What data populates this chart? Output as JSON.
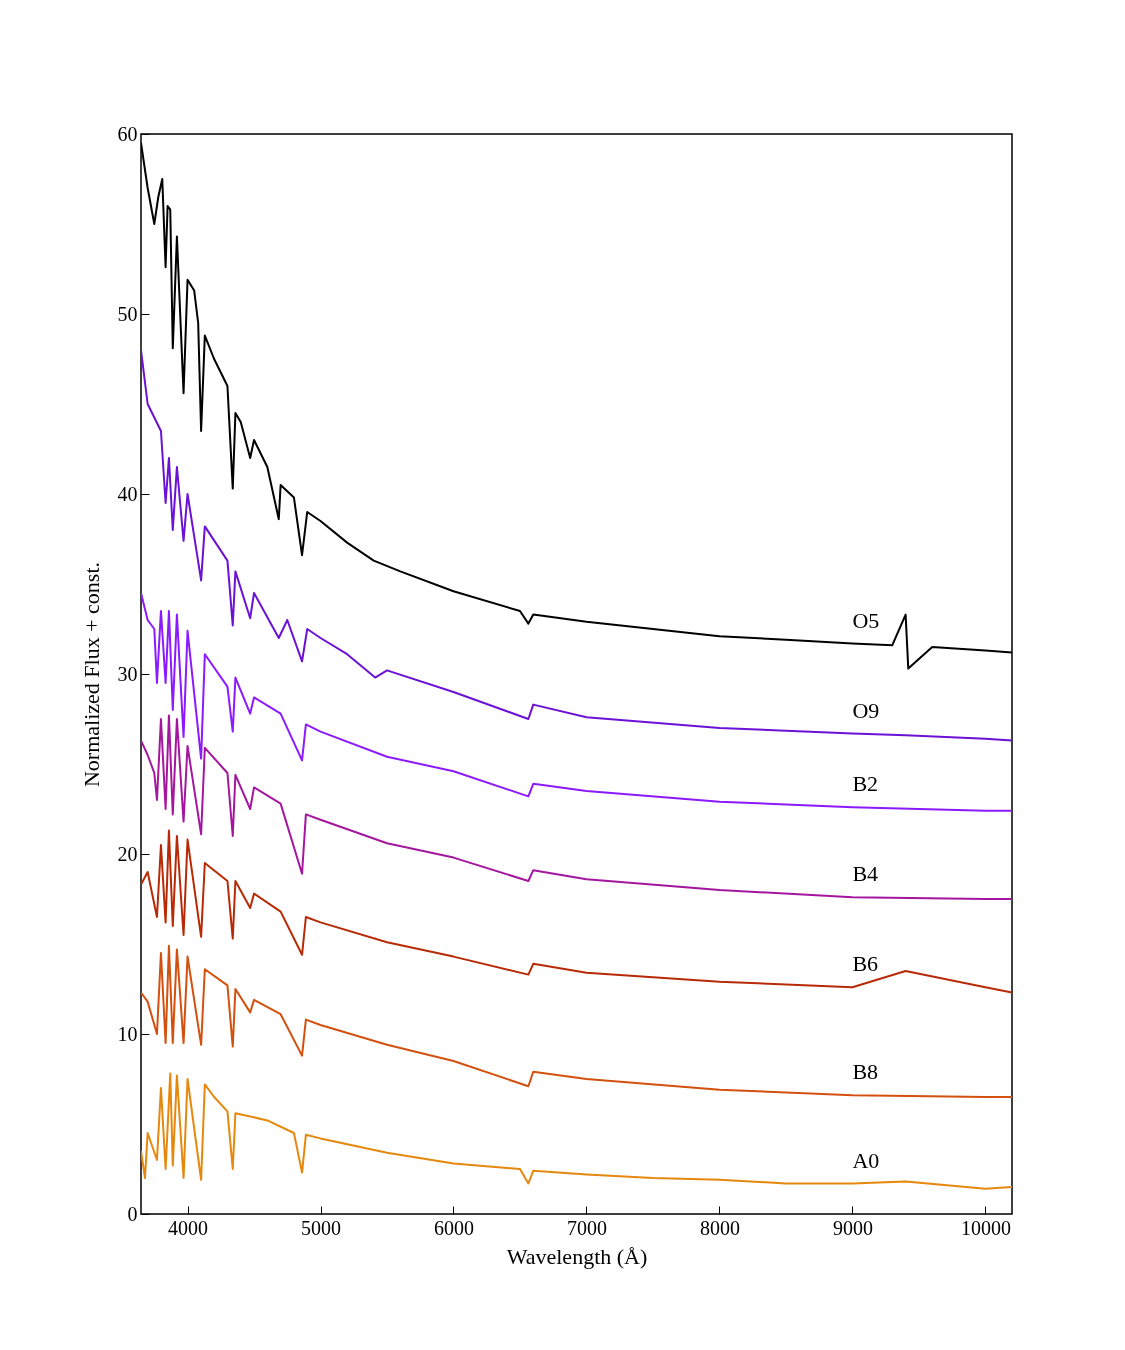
{
  "chart_data": {
    "type": "line",
    "xlabel": "Wavelength (Å)",
    "ylabel": "Normalized Flux + const.",
    "xlim": [
      3650,
      10200
    ],
    "ylim": [
      0,
      60
    ],
    "xticks": [
      4000,
      5000,
      6000,
      7000,
      8000,
      9000,
      10000
    ],
    "yticks": [
      0,
      10,
      20,
      30,
      40,
      50,
      60
    ],
    "grid": false,
    "legend": false,
    "marker": "none",
    "line_style": "solid",
    "series": [
      {
        "name": "O5",
        "color": "#000000",
        "x": [
          3650,
          3700,
          3750,
          3780,
          3810,
          3835,
          3850,
          3870,
          3889,
          3920,
          3970,
          4000,
          4050,
          4080,
          4102,
          4130,
          4200,
          4300,
          4340,
          4360,
          4400,
          4471,
          4500,
          4600,
          4686,
          4700,
          4800,
          4861,
          4900,
          5000,
          5200,
          5400,
          5600,
          6000,
          6500,
          6563,
          6600,
          7000,
          7500,
          8000,
          8500,
          9000,
          9300,
          9400,
          9420,
          9600,
          9800,
          10000,
          10200
        ],
        "values": [
          59.5,
          57,
          55,
          56.5,
          57.5,
          52.6,
          56,
          55.8,
          48.1,
          54.3,
          45.6,
          51.9,
          51.3,
          49.5,
          43.5,
          48.8,
          47.5,
          46,
          40.3,
          44.5,
          44,
          42,
          43,
          41.5,
          38.6,
          40.5,
          39.8,
          36.6,
          39,
          38.5,
          37.3,
          36.3,
          35.7,
          34.6,
          33.5,
          32.8,
          33.3,
          32.9,
          32.5,
          32.1,
          31.9,
          31.7,
          31.6,
          33.3,
          30.3,
          31.5,
          31.4,
          31.3,
          31.2
        ]
      },
      {
        "name": "O9",
        "color": "#6b12d6",
        "x": [
          3650,
          3700,
          3800,
          3835,
          3860,
          3889,
          3920,
          3970,
          4000,
          4102,
          4130,
          4300,
          4340,
          4360,
          4471,
          4500,
          4686,
          4750,
          4861,
          4900,
          5000,
          5200,
          5411,
          5500,
          6000,
          6563,
          6600,
          7000,
          8000,
          9000,
          9400,
          10000,
          10200
        ],
        "values": [
          48,
          45,
          43.5,
          39.5,
          42,
          38,
          41.5,
          37.4,
          40,
          35.2,
          38.2,
          36.3,
          32.7,
          35.7,
          33.1,
          34.5,
          32,
          33,
          30.7,
          32.5,
          32,
          31.1,
          29.8,
          30.2,
          29,
          27.5,
          28.3,
          27.6,
          27,
          26.7,
          26.6,
          26.4,
          26.3
        ]
      },
      {
        "name": "B2",
        "color": "#8c1aff",
        "x": [
          3650,
          3700,
          3750,
          3770,
          3800,
          3835,
          3860,
          3889,
          3920,
          3970,
          4000,
          4102,
          4130,
          4300,
          4340,
          4360,
          4471,
          4500,
          4700,
          4861,
          4890,
          5000,
          5500,
          6000,
          6563,
          6600,
          7000,
          8000,
          9000,
          10000,
          10200
        ],
        "values": [
          34.5,
          33,
          32.5,
          29.5,
          33.5,
          29.5,
          33.5,
          28,
          33.3,
          26.5,
          32.4,
          25.3,
          31.1,
          29.3,
          26.8,
          29.8,
          27.8,
          28.7,
          27.8,
          25.2,
          27.2,
          26.8,
          25.4,
          24.6,
          23.2,
          23.9,
          23.5,
          22.9,
          22.6,
          22.4,
          22.4
        ]
      },
      {
        "name": "B4",
        "color": "#a5169f",
        "x": [
          3650,
          3700,
          3750,
          3770,
          3800,
          3835,
          3860,
          3889,
          3920,
          3970,
          4000,
          4102,
          4130,
          4300,
          4340,
          4360,
          4471,
          4500,
          4700,
          4861,
          4890,
          5000,
          5500,
          6000,
          6563,
          6600,
          7000,
          8000,
          9000,
          10000,
          10200
        ],
        "values": [
          26.3,
          25.5,
          24.5,
          23,
          27.5,
          22.5,
          27.7,
          22.2,
          27.5,
          21.8,
          26,
          21.1,
          25.9,
          24.5,
          21,
          24.4,
          22.5,
          23.7,
          22.8,
          18.9,
          22.2,
          21.9,
          20.6,
          19.8,
          18.5,
          19.1,
          18.6,
          18,
          17.6,
          17.5,
          17.5
        ]
      },
      {
        "name": "B6",
        "color": "#b82a05",
        "x": [
          3650,
          3700,
          3770,
          3800,
          3835,
          3860,
          3889,
          3920,
          3970,
          4000,
          4102,
          4130,
          4300,
          4340,
          4360,
          4471,
          4500,
          4700,
          4861,
          4890,
          5000,
          5500,
          6000,
          6563,
          6600,
          7000,
          8000,
          9000,
          9400,
          10000,
          10200
        ],
        "values": [
          18.3,
          19,
          16.5,
          20.5,
          16.2,
          21.3,
          16,
          21,
          15.5,
          20.8,
          15.4,
          19.5,
          18.5,
          15.3,
          18.5,
          17,
          17.8,
          16.8,
          14.4,
          16.5,
          16.2,
          15.1,
          14.3,
          13.3,
          13.9,
          13.4,
          12.9,
          12.6,
          13.5,
          12.6,
          12.3
        ]
      },
      {
        "name": "B8",
        "color": "#d4500e",
        "x": [
          3650,
          3700,
          3770,
          3800,
          3835,
          3860,
          3889,
          3920,
          3970,
          4000,
          4102,
          4130,
          4300,
          4340,
          4360,
          4471,
          4500,
          4700,
          4861,
          4890,
          5000,
          5500,
          6000,
          6563,
          6600,
          7000,
          8000,
          9000,
          10000,
          10200
        ],
        "values": [
          12.3,
          11.8,
          10,
          14.5,
          9.5,
          14.9,
          9.5,
          14.7,
          9.5,
          14.3,
          9.4,
          13.6,
          12.7,
          9.3,
          12.5,
          11.2,
          11.9,
          11.1,
          8.8,
          10.8,
          10.5,
          9.4,
          8.5,
          7.1,
          7.9,
          7.5,
          6.9,
          6.6,
          6.5,
          6.5
        ]
      },
      {
        "name": "A0",
        "color": "#e6880e",
        "x": [
          3650,
          3680,
          3700,
          3770,
          3800,
          3835,
          3870,
          3889,
          3920,
          3970,
          4000,
          4102,
          4130,
          4200,
          4300,
          4340,
          4360,
          4600,
          4800,
          4861,
          4890,
          5000,
          5500,
          6000,
          6500,
          6563,
          6600,
          7000,
          7500,
          8000,
          8500,
          9000,
          9400,
          10000,
          10200
        ],
        "values": [
          3.5,
          2,
          4.5,
          3,
          7,
          2.5,
          7.8,
          2.7,
          7.7,
          2,
          7.5,
          1.9,
          7.2,
          6.5,
          5.7,
          2.5,
          5.6,
          5.2,
          4.5,
          2.3,
          4.4,
          4.2,
          3.4,
          2.8,
          2.5,
          1.7,
          2.4,
          2.2,
          2,
          1.9,
          1.7,
          1.7,
          1.8,
          1.4,
          1.5
        ]
      }
    ]
  }
}
